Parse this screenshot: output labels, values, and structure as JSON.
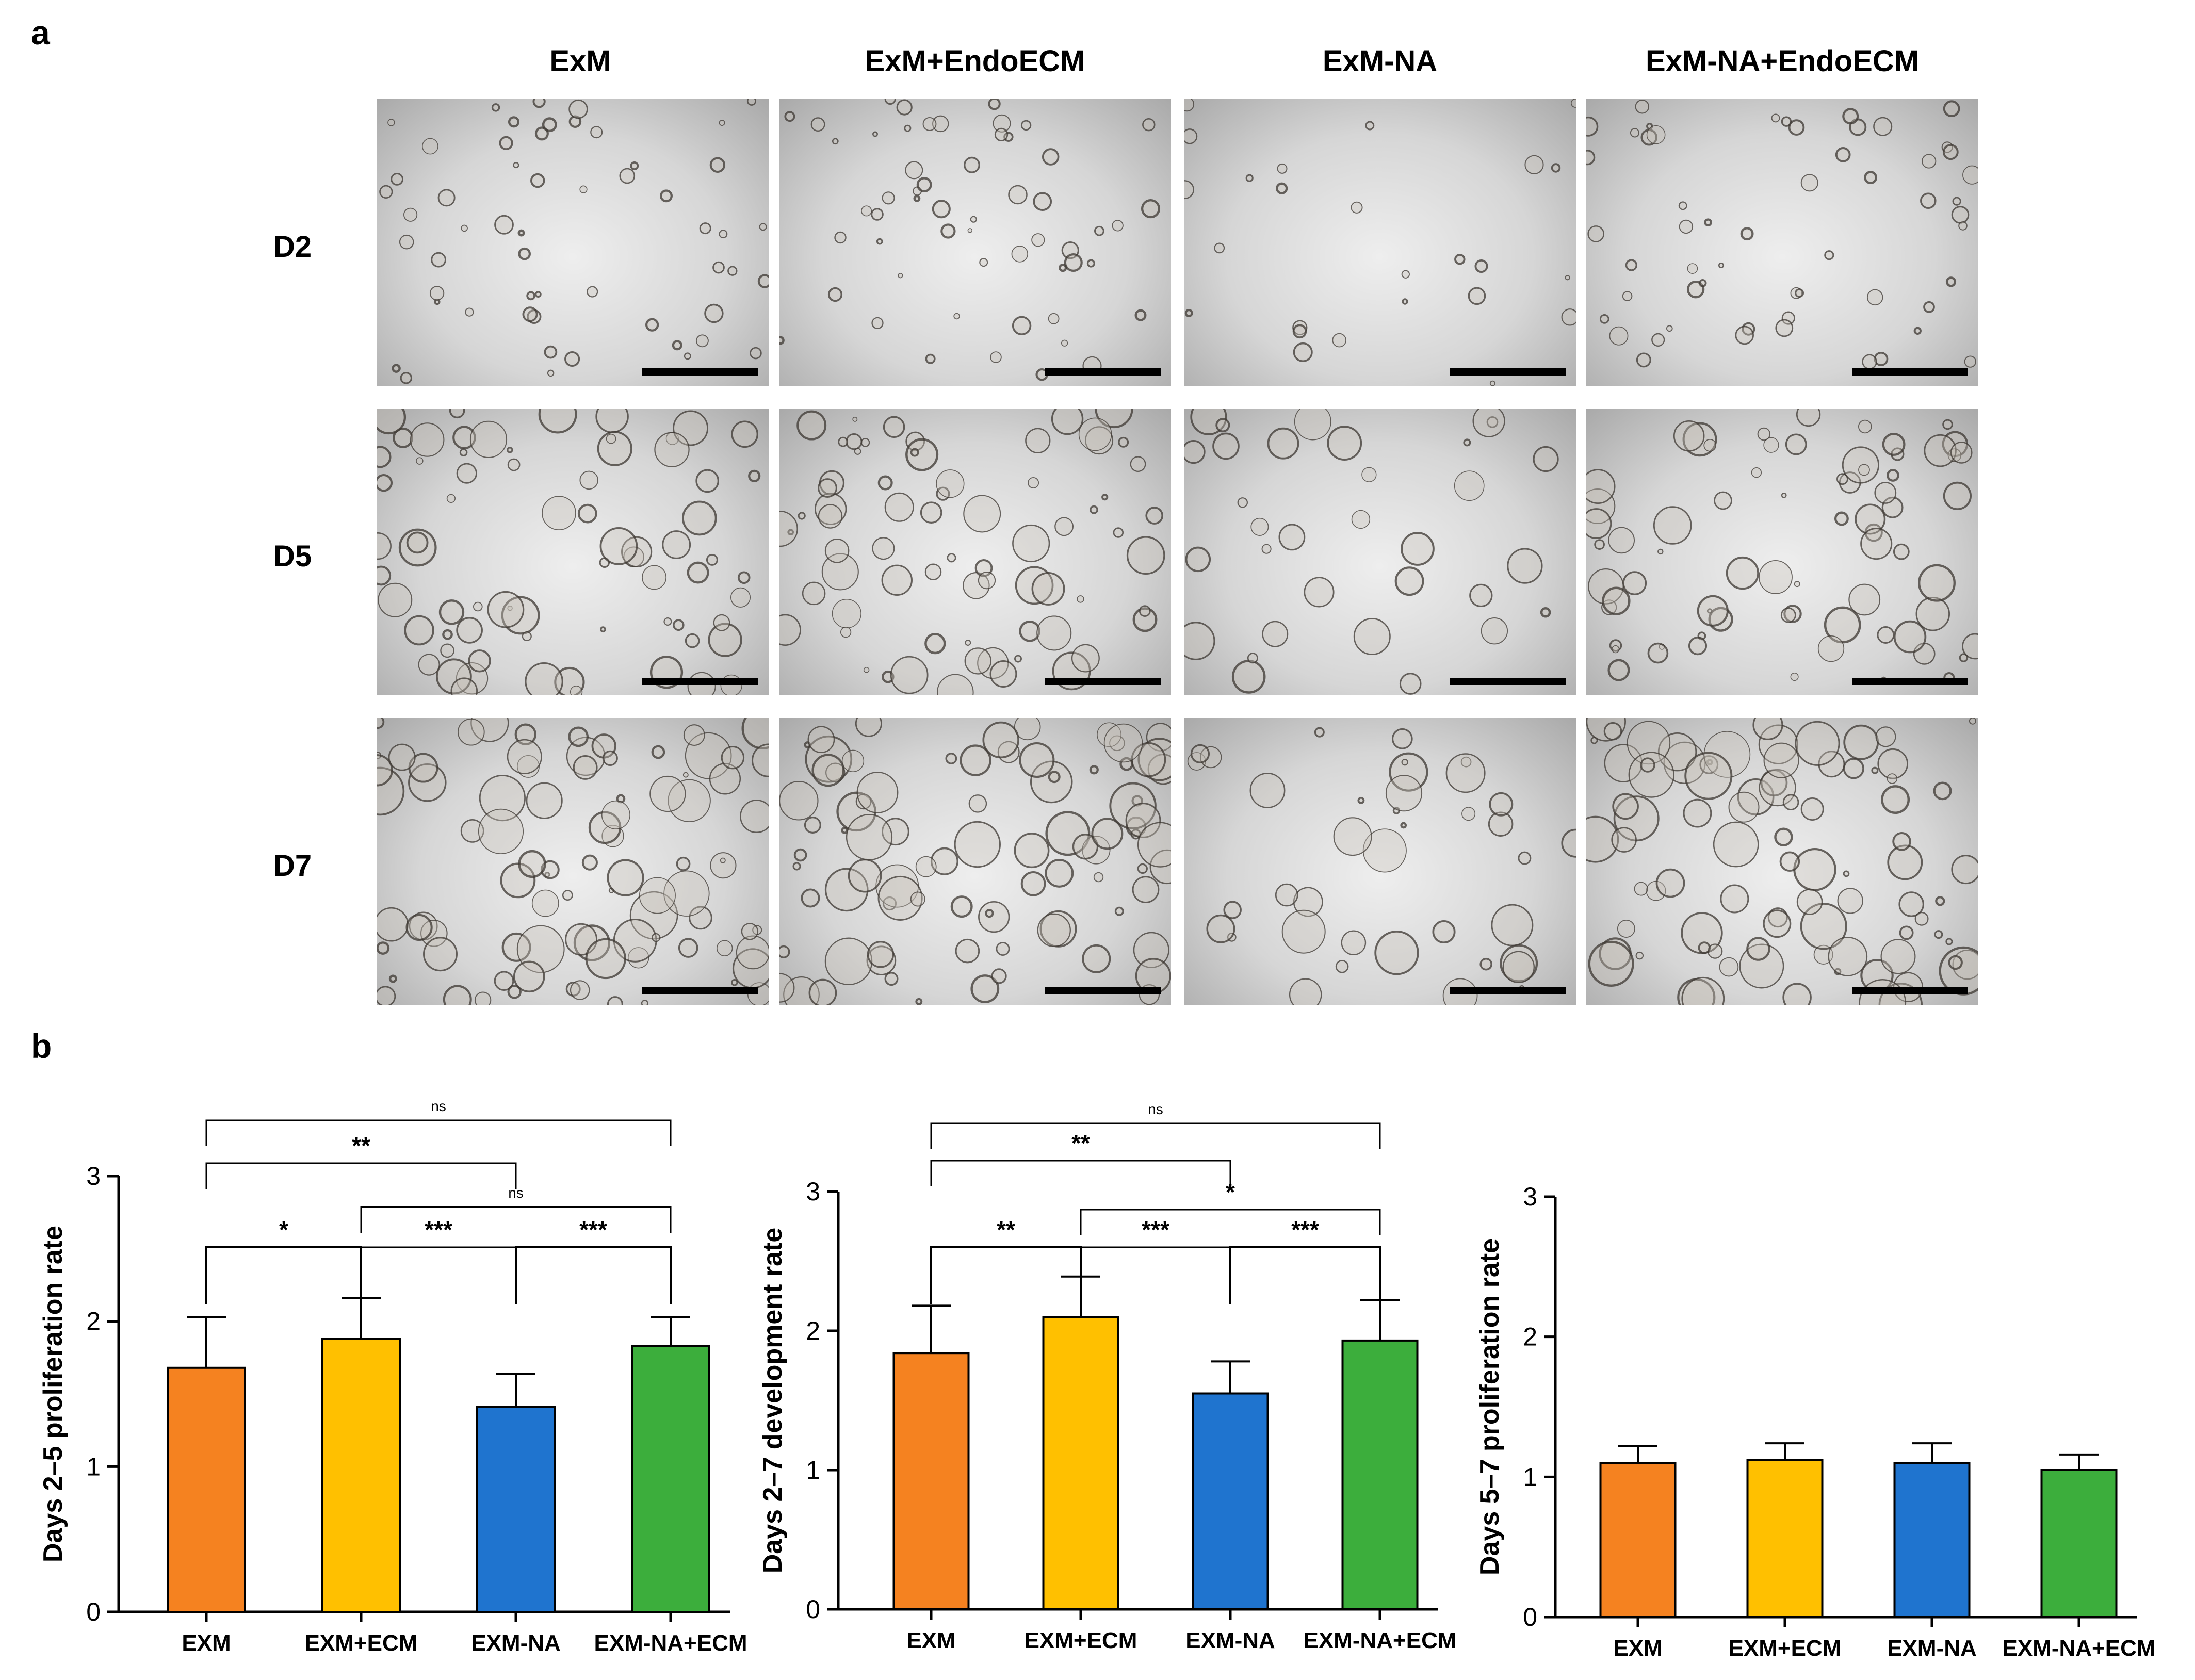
{
  "panels": {
    "a": "a",
    "b": "b"
  },
  "micrographs": {
    "columns": [
      "ExM",
      "ExM+EndoECM",
      "ExM-NA",
      "ExM-NA+EndoECM"
    ],
    "rows": [
      "D2",
      "D5",
      "D7"
    ]
  },
  "colors": {
    "EXM": "#f58220",
    "EXM+ECM": "#ffc000",
    "EXM-NA": "#1f74cf",
    "EXM-NA+ECM": "#3cae3c"
  },
  "chart_data": [
    {
      "type": "bar",
      "ylabel": "Days 2–5 proliferation rate",
      "categories": [
        "EXM",
        "EXM+ECM",
        "EXM-NA",
        "EXM-NA+ECM"
      ],
      "values": [
        1.68,
        1.88,
        1.41,
        1.83
      ],
      "errors": [
        0.35,
        0.28,
        0.23,
        0.2
      ],
      "ylim": [
        0,
        3
      ],
      "yticks": [
        "0",
        "1",
        "2",
        "3"
      ],
      "significance": [
        {
          "from": 0,
          "to": 1,
          "label": "*"
        },
        {
          "from": 1,
          "to": 2,
          "label": "***"
        },
        {
          "from": 2,
          "to": 3,
          "label": "***"
        },
        {
          "from": 1,
          "to": 3,
          "label": "ns"
        },
        {
          "from": 0,
          "to": 2,
          "label": "**"
        },
        {
          "from": 0,
          "to": 3,
          "label": "ns"
        }
      ]
    },
    {
      "type": "bar",
      "ylabel": "Days 2–7 development rate",
      "categories": [
        "EXM",
        "EXM+ECM",
        "EXM-NA",
        "EXM-NA+ECM"
      ],
      "values": [
        1.84,
        2.1,
        1.55,
        1.93
      ],
      "errors": [
        0.34,
        0.29,
        0.23,
        0.29
      ],
      "ylim": [
        0,
        3
      ],
      "yticks": [
        "0",
        "1",
        "2",
        "3"
      ],
      "significance": [
        {
          "from": 0,
          "to": 1,
          "label": "**"
        },
        {
          "from": 1,
          "to": 2,
          "label": "***"
        },
        {
          "from": 2,
          "to": 3,
          "label": "***"
        },
        {
          "from": 1,
          "to": 3,
          "label": "*"
        },
        {
          "from": 0,
          "to": 2,
          "label": "**"
        },
        {
          "from": 0,
          "to": 3,
          "label": "ns"
        }
      ]
    },
    {
      "type": "bar",
      "ylabel": "Days 5–7 proliferation rate",
      "categories": [
        "EXM",
        "EXM+ECM",
        "EXM-NA",
        "EXM-NA+ECM"
      ],
      "values": [
        1.1,
        1.12,
        1.1,
        1.05
      ],
      "errors": [
        0.12,
        0.12,
        0.14,
        0.11
      ],
      "ylim": [
        0,
        3
      ],
      "yticks": [
        "0",
        "1",
        "2",
        "3"
      ],
      "significance": []
    }
  ]
}
